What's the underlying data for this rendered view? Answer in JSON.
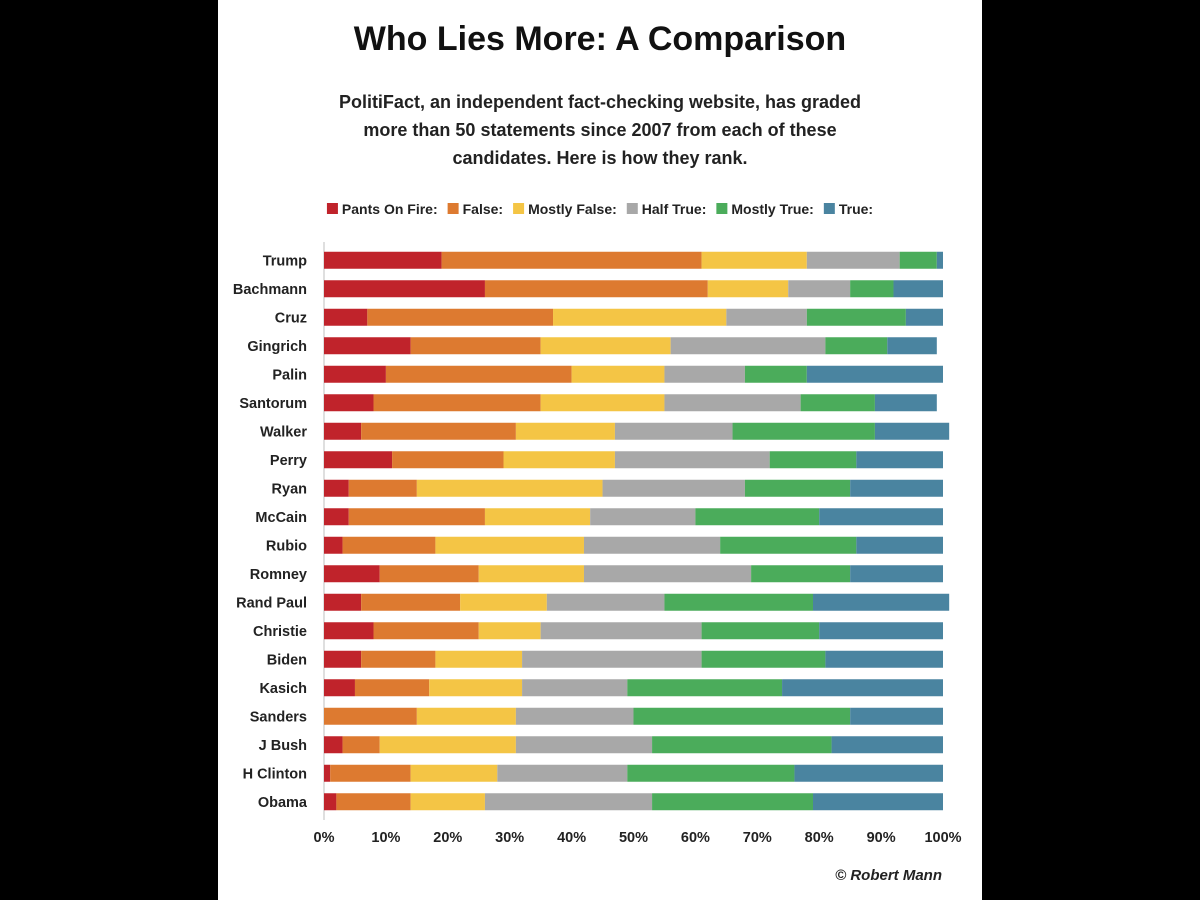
{
  "chart_data": {
    "type": "bar",
    "orientation": "horizontal",
    "stacked": true,
    "title": "Who Lies More: A Comparison",
    "subtitle_lines": [
      "PolitiFact, an independent fact-checking website, has graded",
      "more than 50 statements since 2007 from each of these",
      "candidates. Here is how they rank."
    ],
    "legend_position": "top",
    "xlim": [
      0,
      100
    ],
    "x_ticks": [
      "0%",
      "10%",
      "20%",
      "30%",
      "40%",
      "50%",
      "60%",
      "70%",
      "80%",
      "90%",
      "100%"
    ],
    "credit": "© Robert Mann",
    "categories": [
      "Trump",
      "Bachmann",
      "Cruz",
      "Gingrich",
      "Palin",
      "Santorum",
      "Walker",
      "Perry",
      "Ryan",
      "McCain",
      "Rubio",
      "Romney",
      "Rand Paul",
      "Christie",
      "Biden",
      "Kasich",
      "Sanders",
      "J Bush",
      "H Clinton",
      "Obama"
    ],
    "series": [
      {
        "name": "Pants On Fire:",
        "color": "#c0232b",
        "values": [
          19,
          26,
          7,
          14,
          10,
          8,
          6,
          11,
          4,
          4,
          3,
          9,
          6,
          8,
          6,
          5,
          0,
          3,
          1,
          2
        ]
      },
      {
        "name": "False:",
        "color": "#dd7a30",
        "values": [
          42,
          36,
          30,
          21,
          30,
          27,
          25,
          18,
          11,
          22,
          15,
          16,
          16,
          17,
          12,
          12,
          15,
          6,
          13,
          12
        ]
      },
      {
        "name": "Mostly False:",
        "color": "#f4c545",
        "values": [
          17,
          13,
          28,
          21,
          15,
          20,
          16,
          18,
          30,
          17,
          24,
          17,
          14,
          10,
          14,
          15,
          16,
          22,
          14,
          12
        ]
      },
      {
        "name": "Half True:",
        "color": "#a8a8a8",
        "values": [
          15,
          10,
          13,
          25,
          13,
          22,
          19,
          25,
          23,
          17,
          22,
          27,
          19,
          26,
          29,
          17,
          19,
          22,
          21,
          27
        ]
      },
      {
        "name": "Mostly True:",
        "color": "#4bac5b",
        "values": [
          6,
          7,
          16,
          10,
          10,
          12,
          23,
          14,
          17,
          20,
          22,
          16,
          24,
          19,
          20,
          25,
          35,
          29,
          27,
          26
        ]
      },
      {
        "name": "True:",
        "color": "#4a84a0",
        "values": [
          1,
          8,
          6,
          8,
          22,
          10,
          12,
          14,
          15,
          20,
          14,
          15,
          22,
          20,
          19,
          26,
          15,
          18,
          24,
          21
        ]
      }
    ]
  }
}
